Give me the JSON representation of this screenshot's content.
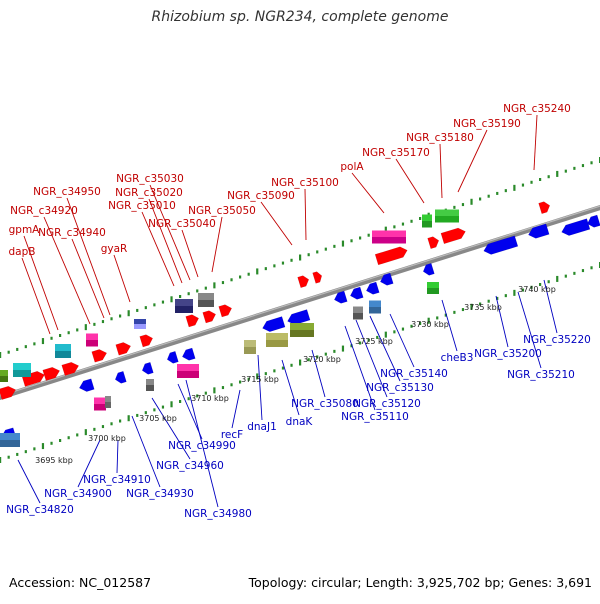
{
  "title": "Rhizobium sp. NGR234, complete genome",
  "footer": {
    "accession": "Accession: NC_012587",
    "summary": "Topology: circular; Length: 3,925,702 bp; Genes: 3,691"
  },
  "colors": {
    "forward_label": "#c00000",
    "reverse_label": "#0000c0",
    "dots": "#2a8a2a",
    "backbone": "#888888",
    "red_gene": "#ff0000",
    "blue_gene": "#0000ee"
  },
  "scale_labels": [
    "3695 kbp",
    "3700 kbp",
    "3705 kbp",
    "3710 kbp",
    "3715 kbp",
    "3720 kbp",
    "3725 kbp",
    "3730 kbp",
    "3735 kbp",
    "3740 kbp"
  ],
  "top_labels": [
    "dapB",
    "gpmA",
    "NGR_c34920",
    "NGR_c34940",
    "NGR_c34950",
    "gyaR",
    "NGR_c35010",
    "NGR_c35020",
    "NGR_c35030",
    "NGR_c35040",
    "NGR_c35050",
    "NGR_c35090",
    "NGR_c35100",
    "polA",
    "NGR_c35170",
    "NGR_c35180",
    "NGR_c35190",
    "NGR_c35240"
  ],
  "bottom_labels": [
    "NGR_c34820",
    "NGR_c34900",
    "NGR_c34910",
    "NGR_c34930",
    "NGR_c34960",
    "NGR_c34980",
    "NGR_c34990",
    "recF",
    "dnaJ1",
    "dnaK",
    "NGR_c35080",
    "NGR_c35110",
    "NGR_c35120",
    "NGR_c35130",
    "NGR_c35140",
    "cheB3",
    "NGR_c35200",
    "NGR_c35210",
    "NGR_c35220"
  ]
}
